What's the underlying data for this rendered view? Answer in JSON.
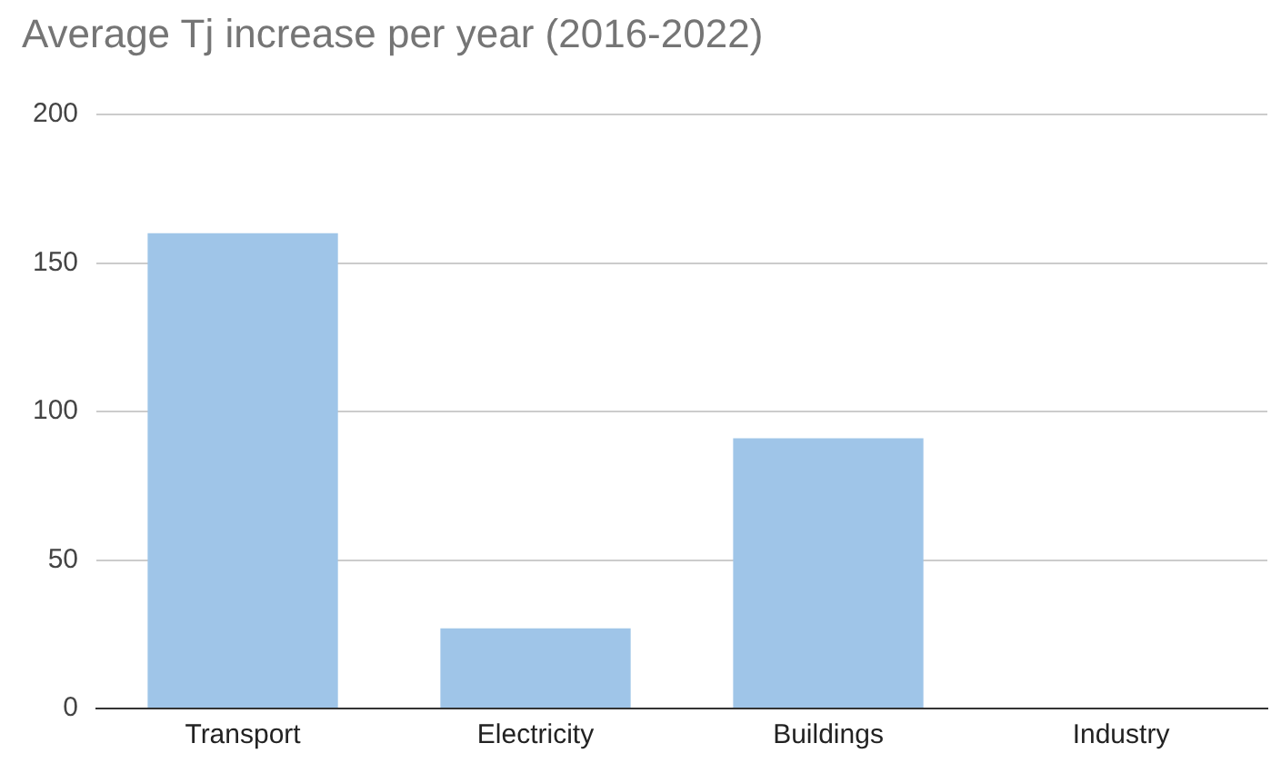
{
  "chart_data": {
    "type": "bar",
    "title": "Average Tj increase per year (2016-2022)",
    "categories": [
      "Transport",
      "Electricity",
      "Buildings",
      "Industry"
    ],
    "values": [
      160,
      27,
      91,
      0
    ],
    "color": "#9fc5e8",
    "ylim": [
      0,
      200
    ],
    "yticks": [
      0,
      50,
      100,
      150,
      200
    ],
    "grid": "y"
  }
}
